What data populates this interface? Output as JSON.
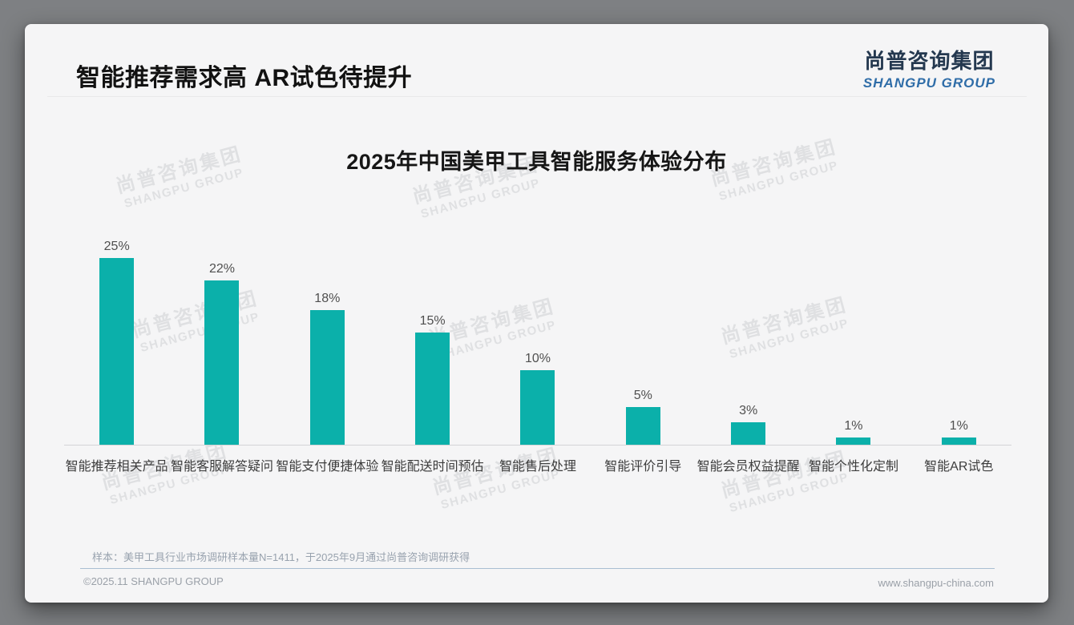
{
  "header": {
    "title": "智能推荐需求高 AR试色待提升",
    "logo_cn": "尚普咨询集团",
    "logo_en": "SHANGPU GROUP"
  },
  "watermark": {
    "cn": "尚普咨询集团",
    "en": "SHANGPU GROUP"
  },
  "chart_data": {
    "type": "bar",
    "title": "2025年中国美甲工具智能服务体验分布",
    "categories": [
      "智能推荐相关产品",
      "智能客服解答疑问",
      "智能支付便捷体验",
      "智能配送时间预估",
      "智能售后处理",
      "智能评价引导",
      "智能会员权益提醒",
      "智能个性化定制",
      "智能AR试色"
    ],
    "values": [
      25,
      22,
      18,
      15,
      10,
      5,
      3,
      1,
      1
    ],
    "data_labels": [
      "25%",
      "22%",
      "18%",
      "15%",
      "10%",
      "5%",
      "3%",
      "1%",
      "1%"
    ],
    "unit": "%",
    "xlabel": "",
    "ylabel": "",
    "ylim": [
      0,
      27
    ],
    "grid": false,
    "legend_position": "none",
    "bar_color": "#0bb0aa"
  },
  "footer": {
    "note": "样本：美甲工具行业市场调研样本量N=1411，于2025年9月通过尚普咨询调研获得",
    "copyright": "©2025.11 SHANGPU GROUP",
    "website": "www.shangpu-china.com"
  },
  "colors": {
    "accent_teal": "#0bb0aa",
    "logo_navy": "#24384f",
    "logo_blue": "#2f6da8",
    "card_background": "#f5f5f6",
    "page_background": "#7e8083"
  }
}
